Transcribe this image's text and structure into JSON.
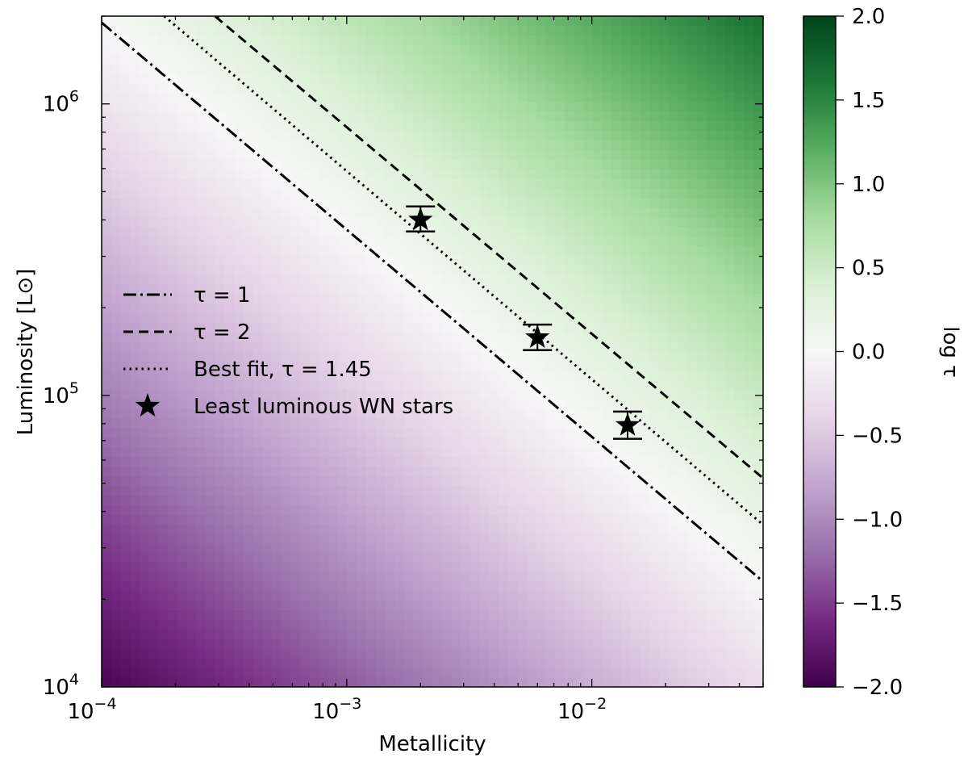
{
  "chart_data": {
    "type": "heatmap",
    "xlabel": "Metallicity",
    "ylabel": "Luminosity [L⊙]",
    "x_scale": "log",
    "y_scale": "log",
    "xlim": [
      0.0001,
      0.05
    ],
    "ylim": [
      10000,
      2000000
    ],
    "x_ticks": [
      {
        "value": 0.0001,
        "base": "10",
        "exp": "−4"
      },
      {
        "value": 0.001,
        "base": "10",
        "exp": "−3"
      },
      {
        "value": 0.01,
        "base": "10",
        "exp": "−2"
      }
    ],
    "y_ticks": [
      {
        "value": 10000,
        "base": "10",
        "exp": "4"
      },
      {
        "value": 100000,
        "base": "10",
        "exp": "5"
      },
      {
        "value": 1000000,
        "base": "10",
        "exp": "6"
      }
    ],
    "colorbar": {
      "label": "log τ",
      "range": [
        -2.0,
        2.0
      ],
      "ticks": [
        "2.0",
        "1.5",
        "1.0",
        "0.5",
        "0.0",
        "−0.5",
        "−1.0",
        "−1.5",
        "−2.0"
      ],
      "tick_values": [
        2.0,
        1.5,
        1.0,
        0.5,
        0.0,
        -0.5,
        -1.0,
        -1.5,
        -2.0
      ],
      "colormap": "PRGn",
      "colors": [
        "#40004b",
        "#762a83",
        "#9970ab",
        "#c2a5cf",
        "#e7d4e8",
        "#f7f7f7",
        "#d9f0d3",
        "#a6dba0",
        "#5aae61",
        "#1b7837",
        "#00441b"
      ]
    },
    "lines": [
      {
        "name": "τ = 1",
        "style": "dashdot",
        "x": [
          0.0001,
          0.05
        ],
        "y": [
          1900000,
          23000
        ]
      },
      {
        "name": "τ = 2",
        "style": "dashed",
        "x": [
          0.00029,
          0.05
        ],
        "y": [
          2000000,
          52000
        ]
      },
      {
        "name": "Best fit, τ = 1.45",
        "style": "dotted",
        "x": [
          0.00018,
          0.05
        ],
        "y": [
          2000000,
          36000
        ]
      }
    ],
    "points": {
      "name": "Least luminous WN stars",
      "marker": "star",
      "x": [
        0.002,
        0.006,
        0.014
      ],
      "y": [
        400000,
        158000,
        79000
      ],
      "y_err_low": [
        35000,
        15000,
        8000
      ],
      "y_err_high": [
        45000,
        17000,
        9000
      ]
    },
    "legend": {
      "placement": "center-left",
      "entries": [
        "τ = 1",
        "τ = 2",
        "Best fit, τ = 1.45",
        "Least luminous WN stars"
      ]
    },
    "grid": false
  }
}
